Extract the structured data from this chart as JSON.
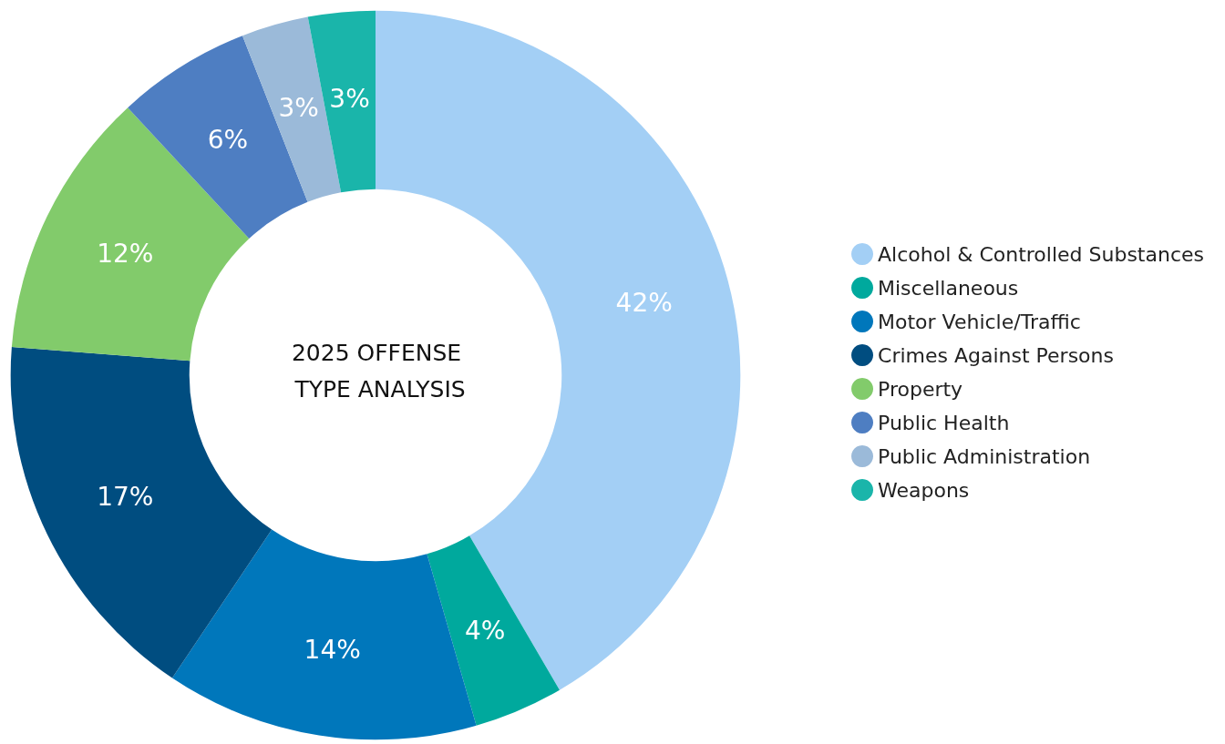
{
  "chart_data": {
    "type": "donut",
    "title": "2025 OFFENSE TYPE ANALYSIS",
    "categories": [
      "Alcohol & Controlled Substances",
      "Miscellaneous",
      "Motor Vehicle/Traffic",
      "Crimes Against Persons",
      "Property",
      "Public Health",
      "Public Administration",
      "Weapons"
    ],
    "values": [
      42,
      4,
      14,
      17,
      12,
      6,
      3,
      3
    ],
    "colors": [
      "#a3cff5",
      "#00a99d",
      "#0077bb",
      "#004d80",
      "#82cb6b",
      "#4e7ec2",
      "#9bbad9",
      "#1ab5aa"
    ],
    "value_labels": [
      "42%",
      "4%",
      "14%",
      "17%",
      "12%",
      "6%",
      "3%",
      "3%"
    ],
    "legend": "right"
  }
}
